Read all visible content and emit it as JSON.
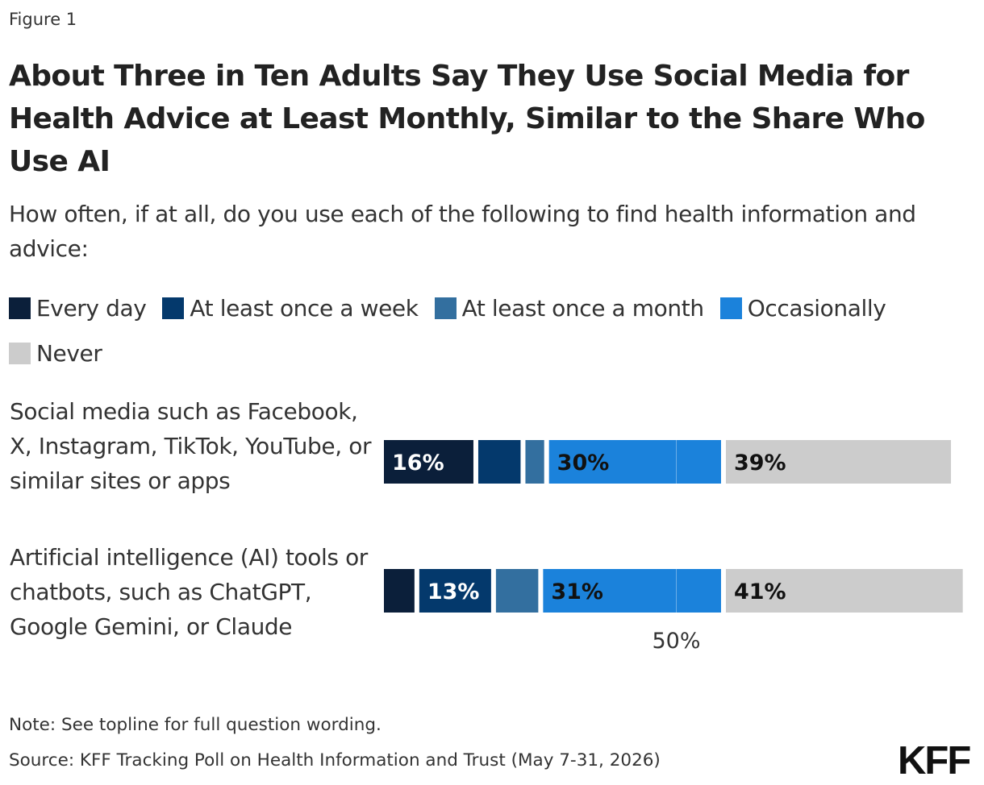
{
  "figure_label": "Figure 1",
  "chart_data": {
    "type": "bar",
    "orientation": "horizontal",
    "stacked": true,
    "title": "About Three in Ten Adults Say They Use Social Media for Health Advice at Least Monthly, Similar to the Share Who Use AI",
    "subtitle": "How often, if at all, do you use each of the following to find health information and advice:",
    "categories": [
      "Social media such as Facebook, X, Instagram, TikTok, YouTube, or similar sites or apps",
      "Artificial intelligence (AI) tools or chatbots, such as ChatGPT, Google Gemini, or Claude"
    ],
    "series": [
      {
        "name": "Every day",
        "color": "#0b1f3a",
        "values": [
          16,
          6
        ]
      },
      {
        "name": "At least once a week",
        "color": "#04396c",
        "values": [
          8,
          13
        ]
      },
      {
        "name": "At least once a month",
        "color": "#336f9f",
        "values": [
          4,
          8
        ]
      },
      {
        "name": "Occasionally",
        "color": "#1b82db",
        "values": [
          30,
          31
        ]
      },
      {
        "name": "Never",
        "color": "#cccccc",
        "values": [
          39,
          41
        ]
      }
    ],
    "data_labels": [
      [
        "16%",
        "",
        "",
        "30%",
        "39%"
      ],
      [
        "",
        "13%",
        "",
        "31%",
        "41%"
      ]
    ],
    "xlim": [
      0,
      100
    ],
    "reference_tick": "50%",
    "legend_position": "top"
  },
  "note": "Note: See topline for full question wording.",
  "source": "Source: KFF Tracking Poll on Health Information and Trust (May 7-31, 2026)",
  "logo": "KFF"
}
